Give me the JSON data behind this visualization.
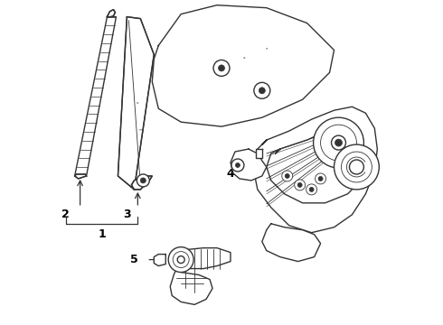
{
  "bg_color": "#ffffff",
  "line_color": "#555555",
  "dark_color": "#333333",
  "label_color": "#000000",
  "lw_main": 1.0,
  "lw_thick": 1.4,
  "lw_thin": 0.6,
  "figsize": [
    4.9,
    3.6
  ],
  "dpi": 100,
  "parts": {
    "strip_label": "2",
    "channel_label": "3",
    "bracket_label": "1",
    "regulator_label": "4",
    "motor_label": "5"
  }
}
